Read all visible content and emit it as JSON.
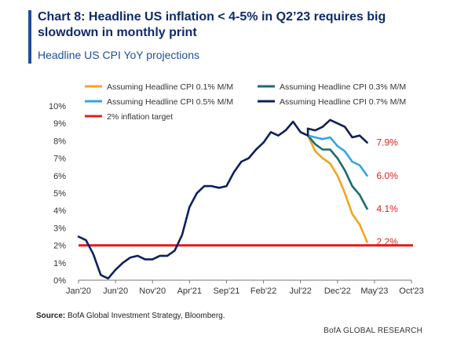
{
  "header": {
    "title": "Chart 8: Headline US inflation < 4-5% in Q2’23 requires big slowdown in monthly print",
    "subtitle": "Headline US CPI YoY projections"
  },
  "footer": {
    "source_label": "Source:",
    "source_text": "BofA Global Investment Strategy, Bloomberg.",
    "brand": "BofA GLOBAL RESEARCH"
  },
  "chart_data": {
    "type": "line",
    "x_unit": "month",
    "xlim": [
      "2020-01",
      "2023-10"
    ],
    "x_ticks": [
      {
        "date": "2020-01",
        "label": "Jan'20"
      },
      {
        "date": "2020-06",
        "label": "Jun'20"
      },
      {
        "date": "2020-11",
        "label": "Nov'20"
      },
      {
        "date": "2021-04",
        "label": "Apr'21"
      },
      {
        "date": "2021-09",
        "label": "Sep'21"
      },
      {
        "date": "2022-02",
        "label": "Feb'22"
      },
      {
        "date": "2022-07",
        "label": "Jul'22"
      },
      {
        "date": "2022-12",
        "label": "Dec'22"
      },
      {
        "date": "2023-05",
        "label": "May'23"
      },
      {
        "date": "2023-10",
        "label": "Oct'23"
      }
    ],
    "ylim": [
      0,
      10
    ],
    "y_ticks": [
      {
        "value": 0,
        "label": "0%"
      },
      {
        "value": 1,
        "label": "1%"
      },
      {
        "value": 2,
        "label": "2%"
      },
      {
        "value": 3,
        "label": "3%"
      },
      {
        "value": 4,
        "label": "4%"
      },
      {
        "value": 5,
        "label": "5%"
      },
      {
        "value": 6,
        "label": "6%"
      },
      {
        "value": 7,
        "label": "7%"
      },
      {
        "value": 8,
        "label": "8%"
      },
      {
        "value": 9,
        "label": "9%"
      },
      {
        "value": 10,
        "label": "10%"
      }
    ],
    "grid": false,
    "legend_position": "top",
    "actual_series": {
      "color": "#0f1f5c",
      "start": "2020-01",
      "values": [
        2.5,
        2.3,
        1.5,
        0.3,
        0.1,
        0.6,
        1.0,
        1.3,
        1.4,
        1.2,
        1.2,
        1.4,
        1.4,
        1.7,
        2.6,
        4.2,
        5.0,
        5.4,
        5.4,
        5.3,
        5.4,
        6.2,
        6.8,
        7.0,
        7.5,
        7.9,
        8.5,
        8.3,
        8.6,
        9.1,
        8.5,
        8.3
      ]
    },
    "series": [
      {
        "name": "Assuming Headline CPI 0.1% M/M",
        "color": "#f2a51c",
        "start": "2022-08",
        "values": [
          8.3,
          7.4,
          7.0,
          6.7,
          6.0,
          5.0,
          3.8,
          3.2,
          2.2
        ],
        "end_label": "2.2%"
      },
      {
        "name": "Assuming Headline CPI 0.3% M/M",
        "color": "#1b6b6e",
        "start": "2022-08",
        "values": [
          8.3,
          7.8,
          7.5,
          7.5,
          7.0,
          6.3,
          5.4,
          4.9,
          4.1
        ],
        "end_label": "4.1%"
      },
      {
        "name": "Assuming Headline CPI 0.5% M/M",
        "color": "#2ea7df",
        "start": "2022-08",
        "values": [
          8.3,
          8.2,
          8.1,
          8.2,
          7.7,
          7.4,
          6.8,
          6.6,
          6.0
        ],
        "end_label": "6.0%"
      },
      {
        "name": "Assuming Headline CPI 0.7% M/M",
        "color": "#0f1f5c",
        "start": "2022-08",
        "values": [
          8.7,
          8.6,
          8.8,
          9.2,
          9.0,
          8.8,
          8.2,
          8.3,
          7.9
        ],
        "end_label": "7.9%"
      }
    ],
    "target_line": {
      "name": "2% inflation target",
      "value": 2,
      "color": "#e0201b"
    },
    "end_label_color": "#e0201b"
  }
}
